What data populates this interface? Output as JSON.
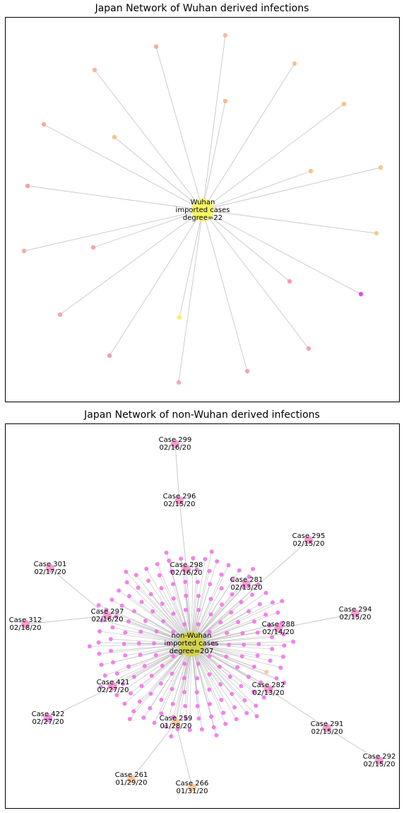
{
  "chart_data": [
    {
      "type": "network",
      "title": "Japan Network of Wuhan derived infections",
      "hub": {
        "label_lines": [
          "Wuhan",
          "imported cases",
          "degree=22"
        ],
        "color": "#f7f560"
      },
      "leaf_count": 22,
      "leaves": [
        {
          "color": "#f7b48f"
        },
        {
          "color": "#f4a58f"
        },
        {
          "color": "#f7b090"
        },
        {
          "color": "#f7b88c"
        },
        {
          "color": "#f9b97d"
        },
        {
          "color": "#f6a090"
        },
        {
          "color": "#f7b090"
        },
        {
          "color": "#f9b87f"
        },
        {
          "color": "#f9bc7c"
        },
        {
          "color": "#f59898"
        },
        {
          "color": "#f9c078"
        },
        {
          "color": "#f59aa0"
        },
        {
          "color": "#f4a0a0"
        },
        {
          "color": "#f9c87c"
        },
        {
          "color": "#f48fb0"
        },
        {
          "color": "#e13ce0"
        },
        {
          "color": "#f5a0a5"
        },
        {
          "color": "#f5f05a"
        },
        {
          "color": "#f594b4"
        },
        {
          "color": "#f590b8"
        },
        {
          "color": "#f59ab0"
        },
        {
          "color": "#f5a0a8"
        }
      ],
      "edge_color": "#c8c8c8"
    },
    {
      "type": "network",
      "title": "Japan Network of non-Wuhan derived infections",
      "hub": {
        "label_lines": [
          "non-Wuhan",
          "imported cases",
          "degree=207"
        ],
        "color": "#d4d44a"
      },
      "cluster_node_count": 190,
      "cluster_color": "#f36ce4",
      "edge_color": "#b4b4b4",
      "labeled_cases": [
        {
          "case": "Case 299",
          "date": "02/16/20",
          "color": "#f58cc8"
        },
        {
          "case": "Case 296",
          "date": "02/15/20",
          "color": "#f58cc8"
        },
        {
          "case": "Case 295",
          "date": "02/15/20",
          "color": "#f58cc8"
        },
        {
          "case": "Case 298",
          "date": "02/16/20",
          "color": "#f58cc8"
        },
        {
          "case": "Case 281",
          "date": "02/13/20",
          "color": "#f58cc8"
        },
        {
          "case": "Case 301",
          "date": "02/17/20",
          "color": "#f58cc8"
        },
        {
          "case": "Case 297",
          "date": "02/16/20",
          "color": "#f58cc8"
        },
        {
          "case": "Case 294",
          "date": "02/15/20",
          "color": "#f58cc8"
        },
        {
          "case": "Case 312",
          "date": "02/18/20",
          "color": "#f58cc8"
        },
        {
          "case": "Case 288",
          "date": "02/14/20",
          "color": "#f58cc8"
        },
        {
          "case": "Case 421",
          "date": "02/27/20",
          "color": "#f58cc8"
        },
        {
          "case": "Case 282",
          "date": "02/13/20",
          "color": "#f58cc8"
        },
        {
          "case": "Case 422",
          "date": "02/27/20",
          "color": "#f578d8"
        },
        {
          "case": "Case 259",
          "date": "01/28/20",
          "color": "#f7c090"
        },
        {
          "case": "Case 291",
          "date": "02/15/20",
          "color": "#f58cc8"
        },
        {
          "case": "Case 292",
          "date": "02/15/20",
          "color": "#f58cc8"
        },
        {
          "case": "Case 261",
          "date": "01/29/20",
          "color": "#f7c090"
        },
        {
          "case": "Case 266",
          "date": "01/31/20",
          "color": "#f7c090"
        }
      ]
    }
  ]
}
